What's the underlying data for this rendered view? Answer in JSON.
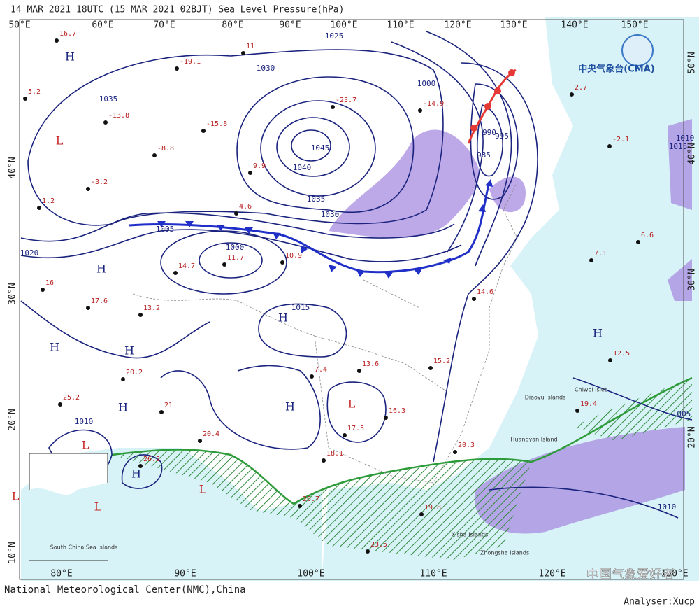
{
  "header": {
    "title": "14 MAR 2021 18UTC (15 MAR 2021 02BJT) Sea Level Pressure(hPa)"
  },
  "footer": {
    "center": "National Meteorological Center(NMC),China",
    "analyser": "Analyser:Xucp",
    "watermark": "中国气象爱好者"
  },
  "logo": {
    "text": "中央气象台(CMA)"
  },
  "top_lon_labels": [
    "50°E",
    "60°E",
    "70°E",
    "80°E",
    "90°E",
    "100°E",
    "110°E",
    "120°E",
    "130°E",
    "140°E",
    "150°E"
  ],
  "bottom_lon_labels": [
    "80°E",
    "90°E",
    "100°E",
    "110°E",
    "120°E",
    "130°E"
  ],
  "left_lat_labels": [
    "40°N",
    "30°N",
    "20°N",
    "10°N"
  ],
  "right_lat_labels": [
    "50°N",
    "40°N",
    "30°N",
    "20°N"
  ],
  "isobar_labels": [
    "1045",
    "1040",
    "1035",
    "1030",
    "1025",
    "1020",
    "1015",
    "1010",
    "1005",
    "1000",
    "995",
    "990",
    "985",
    "1030",
    "1035",
    "1010",
    "1015",
    "1010",
    "1005",
    "1000"
  ],
  "centers": [
    "H",
    "L",
    "H",
    "H",
    "H",
    "H",
    "H",
    "L",
    "H",
    "L",
    "L",
    "H",
    "L",
    "L",
    "H"
  ],
  "places": [
    "Chiwei Islet",
    "Diaoyu Islands",
    "Huangyan Island",
    "Xisha Islands",
    "Zhongsha Islands",
    "South China Sea Islands"
  ],
  "stations": [
    "16.7",
    "-19.1",
    "11",
    "-23.7",
    "-14.9",
    "5.2",
    "-13.8",
    "-15.8",
    "-8.8",
    "9.9",
    "-3.2",
    "1.2",
    "4.6",
    "14.7",
    "11.7",
    "10.9",
    "16",
    "17.6",
    "13.2",
    "20.2",
    "21",
    "25.2",
    "20.4",
    "26.2",
    "26.7",
    "23.5",
    "18.1",
    "17.5",
    "16.3",
    "13.6",
    "7.4",
    "19.8",
    "20.3",
    "15.2",
    "14.6",
    "12.5",
    "19.4",
    "6.6",
    "7.1",
    "2.7",
    "-2.1"
  ]
}
